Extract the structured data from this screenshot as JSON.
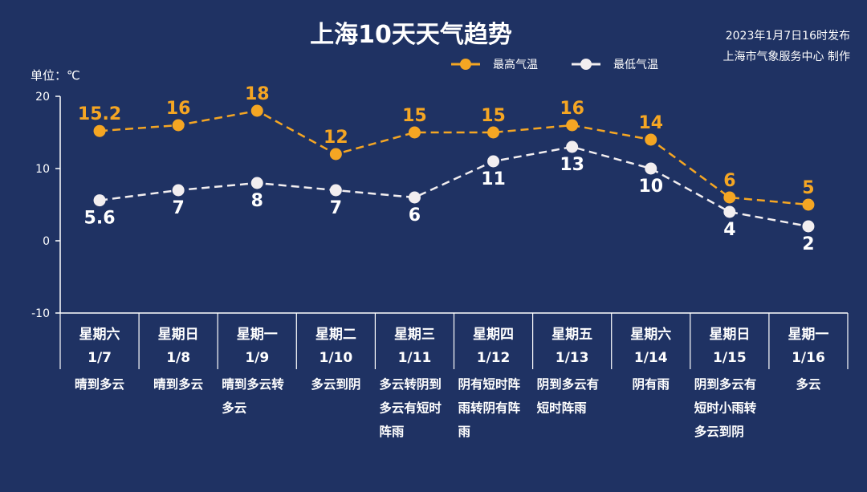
{
  "title": "上海10天天气趋势",
  "publish": {
    "time": "2023年1月7日16时发布",
    "source": "上海市气象服务中心 制作"
  },
  "colors": {
    "background": "#1f3263",
    "high": "#f5a623",
    "low": "#f2eef0",
    "axis": "#ffffff"
  },
  "chart_data": {
    "type": "line",
    "unit_label": "单位：℃",
    "ylim": [
      -10,
      20
    ],
    "yticks": [
      20,
      10,
      0,
      -10
    ],
    "legend_position": "top-center",
    "categories": [
      "1/7",
      "1/8",
      "1/9",
      "1/10",
      "1/11",
      "1/12",
      "1/13",
      "1/14",
      "1/15",
      "1/16"
    ],
    "weekdays": [
      "星期六",
      "星期日",
      "星期一",
      "星期二",
      "星期三",
      "星期四",
      "星期五",
      "星期六",
      "星期日",
      "星期一"
    ],
    "weather": [
      [
        "晴到多云"
      ],
      [
        "晴到多云"
      ],
      [
        "晴到多云转",
        "多云"
      ],
      [
        "多云到阴"
      ],
      [
        "多云转阴到",
        "多云有短时",
        "阵雨"
      ],
      [
        "阴有短时阵",
        "雨转阴有阵",
        "雨"
      ],
      [
        "阴到多云有",
        "短时阵雨"
      ],
      [
        "阴有雨"
      ],
      [
        "阴到多云有",
        "短时小雨转",
        "多云到阴"
      ],
      [
        "多云"
      ]
    ],
    "series": [
      {
        "name": "最高气温",
        "values": [
          15.2,
          16,
          18,
          12,
          15,
          15,
          16,
          14,
          6,
          5
        ],
        "labels": [
          "15.2",
          "16",
          "18",
          "12",
          "15",
          "15",
          "16",
          "14",
          "6",
          "5"
        ]
      },
      {
        "name": "最低气温",
        "values": [
          5.6,
          7,
          8,
          7,
          6,
          11,
          13,
          10,
          4,
          2
        ],
        "labels": [
          "5.6",
          "7",
          "8",
          "7",
          "6",
          "11",
          "13",
          "10",
          "4",
          "2"
        ]
      }
    ]
  }
}
